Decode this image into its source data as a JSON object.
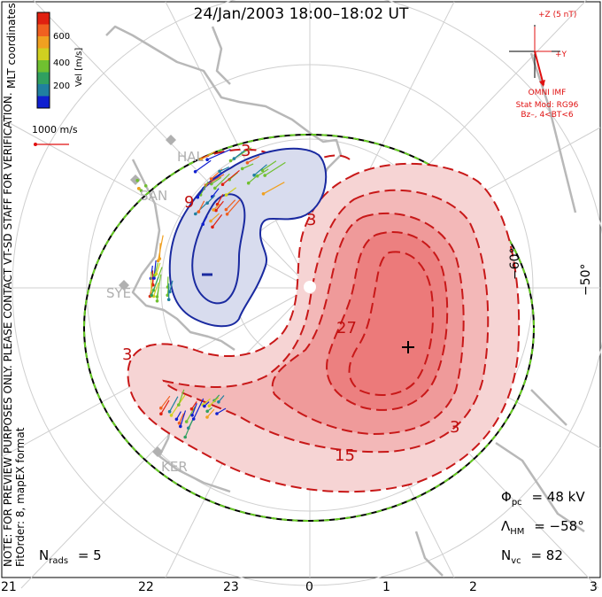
{
  "title": "24/Jan/2003  18:00–18:02  UT",
  "side_note": {
    "line1": "NOTE: FOR PREVIEW PURPOSES ONLY. PLEASE CONTACT VT-SD STAFF FOR VERIFICATION.",
    "line2": "FitOrder: 8, mapEX format"
  },
  "coordinates_label": "MLT coordinates",
  "colorbar": {
    "title": "Vel [m/s]",
    "ticks": [
      "200",
      "400",
      "600"
    ],
    "colors": [
      "#1020d0",
      "#2080a0",
      "#30a060",
      "#70c030",
      "#d0d020",
      "#f0a020",
      "#f06020",
      "#e02010"
    ]
  },
  "scale_vector_label": "1000 m/s",
  "imf": {
    "scale_label": "+Z (5 nT)",
    "y_label": "+Y",
    "source_label": "OMNI IMF",
    "model_line1": "Stat Mod: RG96",
    "model_line2": "Bz–, 4<BT<6"
  },
  "mlt_ticks": [
    "21",
    "22",
    "23",
    "0",
    "1",
    "2",
    "3"
  ],
  "lat_labels": [
    "−60°",
    "−50°"
  ],
  "stations": [
    "HAL",
    "SAN",
    "SYE",
    "KER"
  ],
  "contour_labels": {
    "neg_top": "3",
    "neg_left": "9",
    "pos_top": "3",
    "pos_inner": "27",
    "pos_bottom": "15",
    "pos_right": "3",
    "pos_left": "3"
  },
  "stats": {
    "phi_symbol": "Φ",
    "phi_sub": "pc",
    "phi_value": "= 48 kV",
    "lambda_symbol": "Λ",
    "lambda_sub": "HM",
    "lambda_value": "= −58°",
    "nvc_symbol": "N",
    "nvc_sub": "vc",
    "nvc_value": "= 82",
    "nrads_symbol": "N",
    "nrads_sub": "rads",
    "nrads_value": "= 5"
  },
  "colors": {
    "negative_cell": "#1a2aa0",
    "negative_fill": "#d8dcee",
    "positive_cell": "#c81818",
    "positive_fill_1": "#f6d4d4",
    "positive_fill_2": "#f3b8b8",
    "positive_fill_3": "#ef9a9a",
    "positive_fill_4": "#ec8080",
    "hmb_outer": "#000000",
    "hmb_inner": "#66cc22",
    "grid": "#cfcfcf",
    "coast": "#b8b8b8",
    "imf": "#e01010"
  }
}
